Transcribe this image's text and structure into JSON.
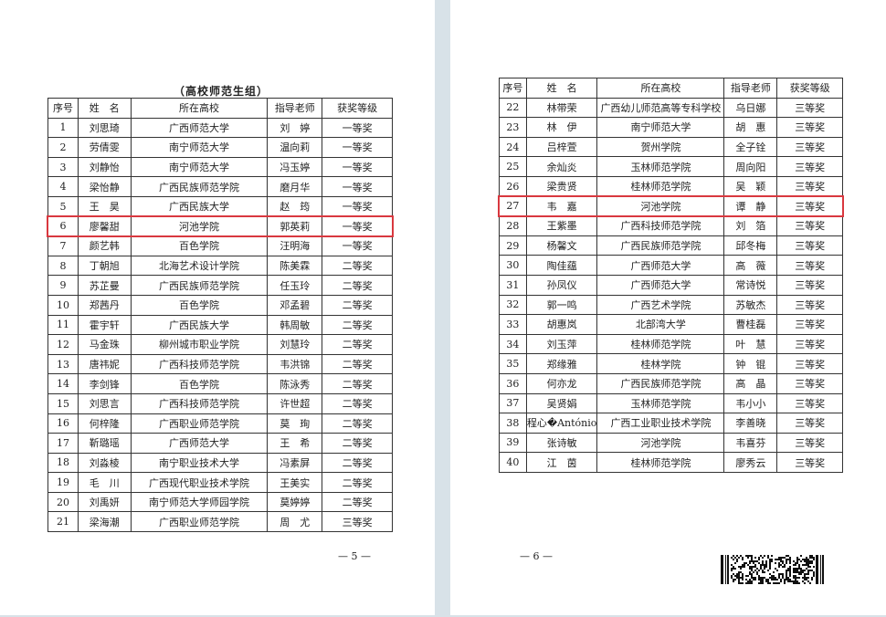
{
  "left_page": {
    "group_title": "（高校师范生组）",
    "headers": [
      "序号",
      "姓　名",
      "所在高校",
      "指导老师",
      "获奖等级"
    ],
    "rows": [
      [
        "1",
        "刘思琦",
        "广西师范大学",
        "刘　婷",
        "一等奖"
      ],
      [
        "2",
        "劳倩雯",
        "南宁师范大学",
        "温向莉",
        "一等奖"
      ],
      [
        "3",
        "刘静怡",
        "南宁师范大学",
        "冯玉婷",
        "一等奖"
      ],
      [
        "4",
        "梁怡静",
        "广西民族师范学院",
        "磨月华",
        "一等奖"
      ],
      [
        "5",
        "王　昊",
        "广西民族大学",
        "赵　筠",
        "一等奖"
      ],
      [
        "6",
        "廖馨甜",
        "河池学院",
        "郭英莉",
        "一等奖"
      ],
      [
        "7",
        "颜艺韩",
        "百色学院",
        "汪明海",
        "一等奖"
      ],
      [
        "8",
        "丁朝旭",
        "北海艺术设计学院",
        "陈美霖",
        "二等奖"
      ],
      [
        "9",
        "苏芷曼",
        "广西民族师范学院",
        "任玉玲",
        "二等奖"
      ],
      [
        "10",
        "郑茜丹",
        "百色学院",
        "邓孟碧",
        "二等奖"
      ],
      [
        "11",
        "霍宇轩",
        "广西民族大学",
        "韩周敏",
        "二等奖"
      ],
      [
        "12",
        "马金珠",
        "柳州城市职业学院",
        "刘慧玲",
        "二等奖"
      ],
      [
        "13",
        "唐祎妮",
        "广西科技师范学院",
        "韦洪锦",
        "二等奖"
      ],
      [
        "14",
        "李剑锋",
        "百色学院",
        "陈泳秀",
        "二等奖"
      ],
      [
        "15",
        "刘思言",
        "广西科技师范学院",
        "许世超",
        "二等奖"
      ],
      [
        "16",
        "何梓隆",
        "广西职业师范学院",
        "莫　珣",
        "二等奖"
      ],
      [
        "17",
        "靳璐瑶",
        "广西师范大学",
        "王　希",
        "二等奖"
      ],
      [
        "18",
        "刘淼棱",
        "南宁职业技术大学",
        "冯素屏",
        "二等奖"
      ],
      [
        "19",
        "毛　川",
        "广西现代职业技术学院",
        "王美实",
        "二等奖"
      ],
      [
        "20",
        "刘禹妍",
        "南宁师范大学师园学院",
        "莫婷婷",
        "二等奖"
      ],
      [
        "21",
        "梁海潮",
        "广西职业师范学院",
        "周　尤",
        "三等奖"
      ]
    ],
    "highlighted_row": 6,
    "page_number": "— 5 —"
  },
  "right_page": {
    "headers": [
      "序号",
      "姓　名",
      "所在高校",
      "指导老师",
      "获奖等级"
    ],
    "rows": [
      [
        "22",
        "林带荣",
        "广西幼儿师范高等专科学校",
        "乌日娜",
        "三等奖"
      ],
      [
        "23",
        "林　伊",
        "南宁师范大学",
        "胡　惠",
        "三等奖"
      ],
      [
        "24",
        "吕梓萱",
        "贺州学院",
        "全子铨",
        "三等奖"
      ],
      [
        "25",
        "余灿炎",
        "玉林师范学院",
        "周向阳",
        "三等奖"
      ],
      [
        "26",
        "梁贵贤",
        "桂林师范学院",
        "吴　颖",
        "三等奖"
      ],
      [
        "27",
        "韦　嘉",
        "河池学院",
        "谭　静",
        "三等奖"
      ],
      [
        "28",
        "王紫墨",
        "广西科技师范学院",
        "刘　箔",
        "三等奖"
      ],
      [
        "29",
        "杨馨文",
        "广西民族师范学院",
        "邱冬梅",
        "三等奖"
      ],
      [
        "30",
        "陶佳蕴",
        "广西师范大学",
        "高　薇",
        "三等奖"
      ],
      [
        "31",
        "孙凤仪",
        "广西师范大学",
        "常诗悦",
        "三等奖"
      ],
      [
        "32",
        "郭一鸣",
        "广西艺术学院",
        "苏敏杰",
        "三等奖"
      ],
      [
        "33",
        "胡惠岚",
        "北部湾大学",
        "曹桂磊",
        "三等奖"
      ],
      [
        "34",
        "刘玉萍",
        "桂林师范学院",
        "叶　慧",
        "三等奖"
      ],
      [
        "35",
        "郑缘雅",
        "桂林学院",
        "钟　锟",
        "三等奖"
      ],
      [
        "36",
        "何亦龙",
        "广西民族师范学院",
        "高　晶",
        "三等奖"
      ],
      [
        "37",
        "吴贤娟",
        "玉林师范学院",
        "韦小小",
        "三等奖"
      ],
      [
        "38",
        "程心�António",
        "广西工业职业技术学院",
        "李善晓",
        "三等奖"
      ],
      [
        "39",
        "张诗敏",
        "河池学院",
        "韦喜芬",
        "三等奖"
      ],
      [
        "40",
        "江　茵",
        "桂林师范学院",
        "廖秀云",
        "三等奖"
      ]
    ],
    "highlighted_row": 27,
    "page_number": "— 6 —"
  },
  "colors": {
    "highlight": "#d9383f",
    "page_gap": "#d8e2e8"
  },
  "icons": {
    "barcode": "2d-barcode"
  }
}
